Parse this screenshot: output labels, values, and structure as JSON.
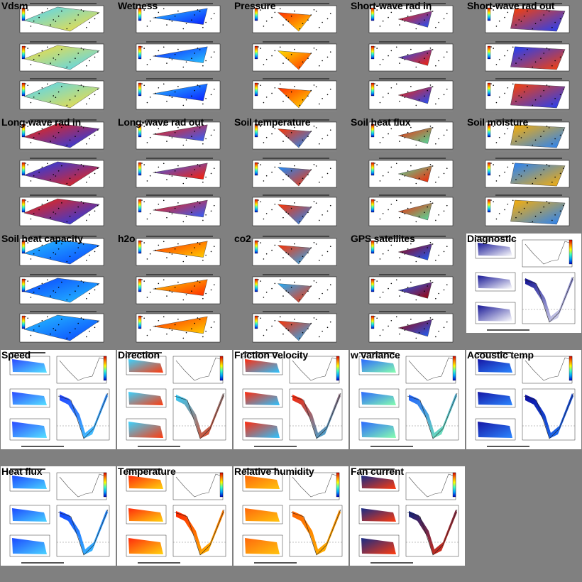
{
  "rows": [
    {
      "type": "map",
      "items": [
        {
          "id": "vdsm",
          "label": "Vdsm",
          "gradient": [
            "#4bd6ff",
            "#ffdd33"
          ],
          "stations": true
        },
        {
          "id": "wetness",
          "label": "Wetness",
          "gradient": [
            "#29c6ff",
            "#0a1eff"
          ],
          "stations": true
        },
        {
          "id": "pressure",
          "label": "Pressure",
          "gradient": [
            "#ff2d00",
            "#ffe000"
          ],
          "stations": true
        },
        {
          "id": "short-wave-rad-in",
          "label": "Short-wave rad in",
          "gradient": [
            "#ff2000",
            "#1a50ff"
          ],
          "stations": true
        },
        {
          "id": "short-wave-rad-out",
          "label": "Short-wave rad out",
          "gradient": [
            "#ff4000",
            "#1a40ff"
          ],
          "stations": true
        }
      ]
    },
    {
      "type": "map",
      "items": [
        {
          "id": "long-wave-rad-in",
          "label": "Long-wave rad in",
          "gradient": [
            "#ff2200",
            "#1040ff"
          ],
          "stations": true
        },
        {
          "id": "long-wave-rad-out",
          "label": "Long-wave rad out",
          "gradient": [
            "#ff1e00",
            "#3060ff"
          ],
          "stations": true
        },
        {
          "id": "soil-temperature",
          "label": "Soil temperature",
          "gradient": [
            "#ff3300",
            "#1a8cff"
          ],
          "stations": true
        },
        {
          "id": "soil-heat-flux",
          "label": "Soil heat flux",
          "gradient": [
            "#ff2000",
            "#4ce0a0"
          ],
          "stations": true
        },
        {
          "id": "soil-moisture",
          "label": "Soil moisture",
          "gradient": [
            "#ffb000",
            "#2080ff"
          ],
          "stations": true
        }
      ]
    },
    {
      "type": "map",
      "items": [
        {
          "id": "soil-heat-capacity",
          "label": "Soil heat capacity",
          "gradient": [
            "#25c4ff",
            "#0a40ff"
          ],
          "stations": true
        },
        {
          "id": "h2o",
          "label": "h2o",
          "gradient": [
            "#ff2a00",
            "#ffd000"
          ],
          "stations": true
        },
        {
          "id": "co2",
          "label": "co2",
          "gradient": [
            "#ff3000",
            "#20b0ff"
          ],
          "stations": true
        },
        {
          "id": "gps-satellites",
          "label": "GPS satellites",
          "gradient": [
            "#a00000",
            "#1a60ff"
          ],
          "stations": true
        },
        {
          "id": "diagnostic",
          "label": "Diagnostic",
          "gradient": [
            "#0a0a90",
            "#ffffff"
          ],
          "transect": true
        }
      ]
    },
    {
      "type": "transect",
      "items": [
        {
          "id": "speed",
          "label": "Speed",
          "gradient": [
            "#2040ff",
            "#4ce0ff"
          ]
        },
        {
          "id": "direction",
          "label": "Direction",
          "gradient": [
            "#30d0ff",
            "#ff3000"
          ]
        },
        {
          "id": "friction-velocity",
          "label": "Friction velocity",
          "gradient": [
            "#ff2000",
            "#20c0ff"
          ]
        },
        {
          "id": "w-variance",
          "label": "w variance",
          "gradient": [
            "#2060ff",
            "#80ffaa"
          ]
        },
        {
          "id": "acoustic-temp",
          "label": "Acoustic temp",
          "gradient": [
            "#0a0aa0",
            "#2080ff"
          ]
        }
      ]
    },
    {
      "type": "transect",
      "items": [
        {
          "id": "heat-flux",
          "label": "Heat flux",
          "gradient": [
            "#1040ff",
            "#40d0ff"
          ]
        },
        {
          "id": "temperature",
          "label": "Temperature",
          "gradient": [
            "#ff2000",
            "#ffd000"
          ]
        },
        {
          "id": "relative-humidity",
          "label": "Relative humidity",
          "gradient": [
            "#ff6000",
            "#ffc000"
          ]
        },
        {
          "id": "fan-current",
          "label": "Fan current",
          "gradient": [
            "#0a2080",
            "#ff3000"
          ]
        }
      ]
    }
  ]
}
